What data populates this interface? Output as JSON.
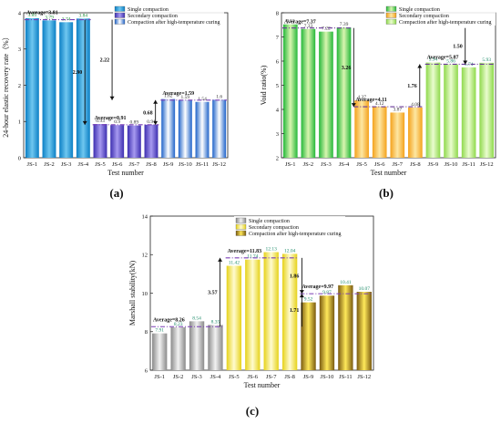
{
  "chart_data": [
    {
      "type": "bar",
      "panel_label": "(a)",
      "xlabel": "Test number",
      "ylabel": "24-hour elastic recovery rate（%）",
      "ylim": [
        0,
        4
      ],
      "yticks": [
        0,
        1,
        2,
        3,
        4
      ],
      "categories": [
        "JS-1",
        "JS-2",
        "JS-3",
        "JS-4",
        "JS-5",
        "JS-6",
        "JS-7",
        "JS-8",
        "JS-9",
        "JS-10",
        "JS-11",
        "JS-12"
      ],
      "values": [
        3.85,
        3.79,
        3.74,
        3.84,
        0.93,
        0.9,
        0.89,
        0.91,
        1.62,
        1.59,
        1.54,
        1.6
      ],
      "value_labels": [
        "3.85",
        "3.79",
        "3.74",
        "3.84",
        "0.93",
        "0.9",
        "0.89",
        "0.91",
        "1.62",
        "1.59",
        "1.54",
        "1.6"
      ],
      "groups": [
        0,
        0,
        0,
        0,
        1,
        1,
        1,
        1,
        2,
        2,
        2,
        2
      ],
      "series": [
        {
          "name": "Single compaction"
        },
        {
          "name": "Secondary compaction"
        },
        {
          "name": "Compaction after high-temperature curing"
        }
      ],
      "colors": {
        "g0a": "#0b7fc4",
        "g0b": "#6fc7f0",
        "g1a": "#3d2fb0",
        "g1b": "#a79af0",
        "g2a": "#1f63c9",
        "g2b": "#ffffff",
        "label0": "#1f8c3a",
        "label1": "#333333",
        "label2": "#333333",
        "line": "#7a3fb5"
      },
      "averages": [
        {
          "label": "Average=3.81",
          "value": 3.81,
          "from": 0,
          "to": 4
        },
        {
          "label": "Average=0.91",
          "value": 0.91,
          "from": 4,
          "to": 8
        },
        {
          "label": "Average=1.59",
          "value": 1.59,
          "from": 8,
          "to": 12
        }
      ],
      "differences": [
        {
          "label": "2.90",
          "top": 3.81,
          "bottom": 0.91,
          "at": 3.6,
          "head": "down"
        },
        {
          "label": "2.22",
          "top": 3.81,
          "bottom": 1.59,
          "at": 5.2,
          "head": "down"
        },
        {
          "label": "0.68",
          "top": 1.59,
          "bottom": 0.91,
          "at": 7.75,
          "head": "both"
        }
      ]
    },
    {
      "type": "bar",
      "panel_label": "(b)",
      "xlabel": "Test number",
      "ylabel": "Void ratio(%)",
      "ylim": [
        2,
        8
      ],
      "yticks": [
        2,
        3,
        4,
        5,
        6,
        7,
        8
      ],
      "categories": [
        "JS-1",
        "JS-2",
        "JS-3",
        "JS-4",
        "JS-5",
        "JS-6",
        "JS-7",
        "JS-8",
        "JS-9",
        "JS-10",
        "JS-11",
        "JS-12"
      ],
      "values": [
        7.52,
        7.33,
        7.22,
        7.39,
        4.37,
        4.12,
        3.87,
        4.08,
        5.94,
        5.86,
        5.74,
        5.93
      ],
      "value_labels": [
        "7.52",
        "7.33",
        "7.22",
        "7.39",
        "4.37",
        "4.12",
        "3.87",
        "4.08",
        "5.94",
        "5.86",
        "5.74",
        "5.93"
      ],
      "groups": [
        0,
        0,
        0,
        0,
        1,
        1,
        1,
        1,
        2,
        2,
        2,
        2
      ],
      "series": [
        {
          "name": "Single compaction"
        },
        {
          "name": "Secondary compaction"
        },
        {
          "name": "Compaction after high-temperature curing"
        }
      ],
      "colors": {
        "g0a": "#25b83a",
        "g0b": "#d9f5b0",
        "g1a": "#f4a21c",
        "g1b": "#fde7a3",
        "g2a": "#8fd94c",
        "g2b": "#eafccf",
        "label0": "#333333",
        "label1": "#333333",
        "label2": "#1f8c6a",
        "line": "#6a3a9a"
      },
      "averages": [
        {
          "label": "Average=7.37",
          "value": 7.37,
          "from": 0,
          "to": 4
        },
        {
          "label": "Average=4.11",
          "value": 4.11,
          "from": 4,
          "to": 8
        },
        {
          "label": "Average=5.87",
          "value": 5.87,
          "from": 8,
          "to": 12
        }
      ],
      "differences": [
        {
          "label": "3.26",
          "top": 7.37,
          "bottom": 4.11,
          "at": 4.05,
          "head": "down"
        },
        {
          "label": "1.50",
          "top": 7.37,
          "bottom": 5.87,
          "at": 10.3,
          "head": "down"
        },
        {
          "label": "1.76",
          "top": 5.87,
          "bottom": 4.11,
          "at": 7.75,
          "head": "up"
        }
      ]
    },
    {
      "type": "bar",
      "panel_label": "(c)",
      "xlabel": "Test number",
      "ylabel": "Marshall stability(kN)",
      "ylim": [
        6,
        14
      ],
      "yticks": [
        6,
        8,
        10,
        12,
        14
      ],
      "categories": [
        "JS-1",
        "JS-2",
        "JS-3",
        "JS-4",
        "JS-5",
        "JS-6",
        "JS-7",
        "JS-8",
        "JS-9",
        "JS-10",
        "JS-11",
        "JS-12"
      ],
      "values": [
        7.91,
        8.23,
        8.54,
        8.35,
        11.42,
        11.74,
        12.13,
        12.04,
        9.52,
        9.87,
        10.41,
        10.07
      ],
      "value_labels": [
        "7.91",
        "8.23",
        "8.54",
        "8.35",
        "11.42",
        "11.74",
        "12.13",
        "12.04",
        "9.52",
        "9.87",
        "10.41",
        "10.07"
      ],
      "groups": [
        0,
        0,
        0,
        0,
        1,
        1,
        1,
        1,
        2,
        2,
        2,
        2
      ],
      "series": [
        {
          "name": "Single compaction"
        },
        {
          "name": "Secondary compaction"
        },
        {
          "name": "Compaction after high-temperature curing"
        }
      ],
      "colors": {
        "g0a": "#8a8a8a",
        "g0b": "#f2f2f2",
        "g1a": "#e6d21a",
        "g1b": "#fffbd0",
        "g2a": "#7a5a10",
        "g2b": "#ffe95a",
        "label0": "#1f8c6a",
        "label1": "#1f8c6a",
        "label2": "#1f8c6a",
        "line": "#7a3fb5"
      },
      "averages": [
        {
          "label": "Average=8.26",
          "value": 8.26,
          "from": 0,
          "to": 4
        },
        {
          "label": "Average=11.83",
          "value": 11.83,
          "from": 4,
          "to": 8
        },
        {
          "label": "Average=9.97",
          "value": 9.97,
          "from": 8,
          "to": 12
        }
      ],
      "differences": [
        {
          "label": "3.57",
          "top": 11.83,
          "bottom": 8.26,
          "at": 3.75,
          "head": "up"
        },
        {
          "label": "1.86",
          "top": 11.83,
          "bottom": 9.97,
          "at": 8.15,
          "head": "down"
        },
        {
          "label": "1.71",
          "top": 9.97,
          "bottom": 8.26,
          "at": 8.15,
          "head": "up"
        }
      ]
    }
  ]
}
